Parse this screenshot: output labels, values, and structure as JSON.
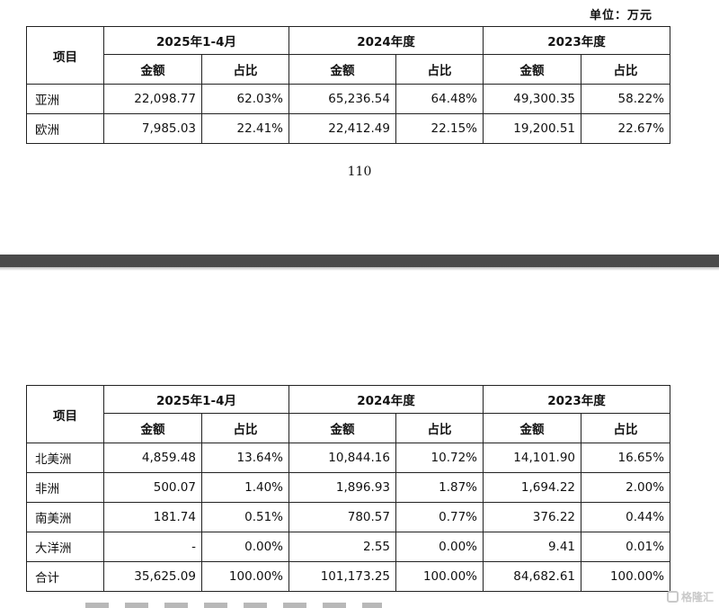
{
  "unit_label": "单位：万元",
  "page_number": "110",
  "watermark_text": "格隆汇",
  "table_top": {
    "item_header": "项目",
    "periods": [
      "2025年1-4月",
      "2024年度",
      "2023年度"
    ],
    "sub_headers": [
      "金额",
      "占比",
      "金额",
      "占比",
      "金额",
      "占比"
    ],
    "rows": [
      {
        "label": "亚洲",
        "values": [
          "22,098.77",
          "62.03%",
          "65,236.54",
          "64.48%",
          "49,300.35",
          "58.22%"
        ]
      },
      {
        "label": "欧洲",
        "values": [
          "7,985.03",
          "22.41%",
          "22,412.49",
          "22.15%",
          "19,200.51",
          "22.67%"
        ]
      }
    ]
  },
  "table_bottom": {
    "item_header": "项目",
    "periods": [
      "2025年1-4月",
      "2024年度",
      "2023年度"
    ],
    "sub_headers": [
      "金额",
      "占比",
      "金额",
      "占比",
      "金额",
      "占比"
    ],
    "rows": [
      {
        "label": "北美洲",
        "values": [
          "4,859.48",
          "13.64%",
          "10,844.16",
          "10.72%",
          "14,101.90",
          "16.65%"
        ]
      },
      {
        "label": "非洲",
        "values": [
          "500.07",
          "1.40%",
          "1,896.93",
          "1.87%",
          "1,694.22",
          "2.00%"
        ]
      },
      {
        "label": "南美洲",
        "values": [
          "181.74",
          "0.51%",
          "780.57",
          "0.77%",
          "376.22",
          "0.44%"
        ]
      },
      {
        "label": "大洋洲",
        "values": [
          "-",
          "0.00%",
          "2.55",
          "0.00%",
          "9.41",
          "0.01%"
        ]
      },
      {
        "label": "合计",
        "values": [
          "35,625.09",
          "100.00%",
          "101,173.25",
          "100.00%",
          "84,682.61",
          "100.00%"
        ]
      }
    ]
  }
}
